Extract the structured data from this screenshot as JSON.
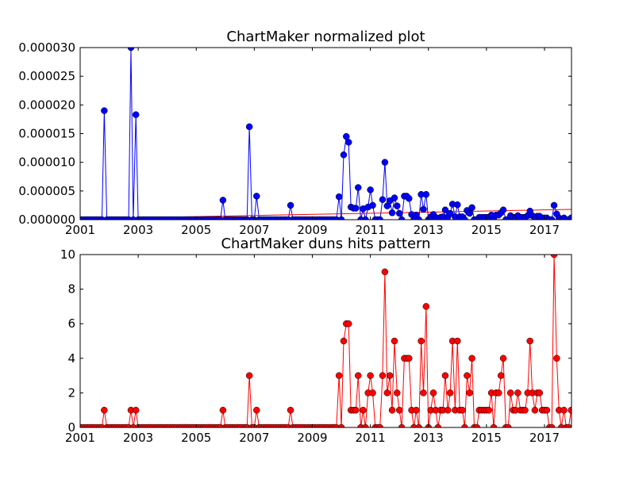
{
  "chart_data": [
    {
      "type": "line",
      "title": "ChartMaker normalized plot",
      "xlim": [
        2001,
        2017.93
      ],
      "xticks": [
        2001,
        2003,
        2005,
        2007,
        2009,
        2011,
        2013,
        2015,
        2017
      ],
      "ylim": [
        0,
        3e-05
      ],
      "yticks": [
        {
          "value": 0,
          "label": "0.000000"
        },
        {
          "value": 5e-06,
          "label": "0.000005"
        },
        {
          "value": 1e-05,
          "label": "0.000010"
        },
        {
          "value": 1.5e-05,
          "label": "0.000015"
        },
        {
          "value": 2e-05,
          "label": "0.000020"
        },
        {
          "value": 2.5e-05,
          "label": "0.000025"
        },
        {
          "value": 3e-05,
          "label": "0.000030"
        }
      ],
      "color": "#0000ff",
      "x": [
        2001,
        2001.08,
        2001.17,
        2001.25,
        2001.33,
        2001.42,
        2001.5,
        2001.58,
        2001.67,
        2001.75,
        2001.83,
        2001.92,
        2002,
        2002.08,
        2002.17,
        2002.25,
        2002.33,
        2002.42,
        2002.5,
        2002.58,
        2002.67,
        2002.75,
        2002.83,
        2002.92,
        2003,
        2003.08,
        2003.17,
        2003.25,
        2003.33,
        2003.42,
        2003.5,
        2003.58,
        2003.67,
        2003.75,
        2003.83,
        2003.92,
        2004,
        2004.08,
        2004.17,
        2004.25,
        2004.33,
        2004.42,
        2004.5,
        2004.58,
        2004.67,
        2004.75,
        2004.83,
        2004.92,
        2005,
        2005.08,
        2005.17,
        2005.25,
        2005.33,
        2005.42,
        2005.5,
        2005.58,
        2005.67,
        2005.75,
        2005.83,
        2005.92,
        2006,
        2006.08,
        2006.17,
        2006.25,
        2006.33,
        2006.42,
        2006.5,
        2006.58,
        2006.67,
        2006.75,
        2006.83,
        2006.92,
        2007,
        2007.08,
        2007.17,
        2007.25,
        2007.33,
        2007.42,
        2007.5,
        2007.58,
        2007.67,
        2007.75,
        2007.83,
        2007.92,
        2008,
        2008.08,
        2008.17,
        2008.25,
        2008.33,
        2008.42,
        2008.5,
        2008.58,
        2008.67,
        2008.75,
        2008.83,
        2008.92,
        2009,
        2009.08,
        2009.17,
        2009.25,
        2009.33,
        2009.42,
        2009.5,
        2009.58,
        2009.67,
        2009.75,
        2009.83,
        2009.92,
        2010,
        2010.08,
        2010.17,
        2010.25,
        2010.33,
        2010.42,
        2010.5,
        2010.58,
        2010.67,
        2010.75,
        2010.83,
        2010.92,
        2011,
        2011.08,
        2011.17,
        2011.25,
        2011.33,
        2011.42,
        2011.5,
        2011.58,
        2011.67,
        2011.75,
        2011.83,
        2011.92,
        2012,
        2012.08,
        2012.17,
        2012.25,
        2012.33,
        2012.42,
        2012.5,
        2012.58,
        2012.67,
        2012.75,
        2012.83,
        2012.92,
        2013,
        2013.08,
        2013.17,
        2013.25,
        2013.33,
        2013.42,
        2013.5,
        2013.58,
        2013.67,
        2013.75,
        2013.83,
        2013.92,
        2014,
        2014.08,
        2014.17,
        2014.25,
        2014.33,
        2014.42,
        2014.5,
        2014.58,
        2014.67,
        2014.75,
        2014.83,
        2014.92,
        2015,
        2015.08,
        2015.17,
        2015.25,
        2015.33,
        2015.42,
        2015.5,
        2015.58,
        2015.67,
        2015.75,
        2015.83,
        2015.92,
        2016,
        2016.08,
        2016.17,
        2016.25,
        2016.33,
        2016.42,
        2016.5,
        2016.58,
        2016.67,
        2016.75,
        2016.83,
        2016.92,
        2017,
        2017.08,
        2017.17,
        2017.25,
        2017.33,
        2017.42,
        2017.5,
        2017.58,
        2017.67,
        2017.75,
        2017.83,
        2017.92
      ],
      "values": [
        0,
        0,
        0,
        0,
        0,
        0,
        0,
        0,
        0,
        0,
        1.9e-05,
        0,
        0,
        0,
        0,
        0,
        0,
        0,
        0,
        0,
        0,
        3e-05,
        0,
        1.83e-05,
        0,
        0,
        0,
        0,
        0,
        0,
        0,
        0,
        0,
        0,
        0,
        0,
        0,
        0,
        0,
        0,
        0,
        0,
        0,
        0,
        0,
        0,
        0,
        0,
        0,
        0,
        0,
        0,
        0,
        0,
        0,
        0,
        0,
        0,
        0,
        3.4e-06,
        0,
        0,
        0,
        0,
        0,
        0,
        0,
        0,
        0,
        0,
        1.62e-05,
        0,
        0,
        4.1e-06,
        0,
        0,
        0,
        0,
        0,
        0,
        0,
        0,
        0,
        0,
        0,
        0,
        0,
        2.5e-06,
        0,
        0,
        0,
        0,
        0,
        0,
        0,
        0,
        0,
        0,
        0,
        0,
        0,
        0,
        0,
        0,
        0,
        0,
        0,
        4e-06,
        0,
        1.13e-05,
        1.45e-05,
        1.35e-05,
        2.2e-06,
        2e-06,
        2e-06,
        5.6e-06,
        0,
        1.9e-06,
        0,
        2.2e-06,
        5.2e-06,
        2.5e-06,
        0,
        0,
        0,
        3.5e-06,
        1e-05,
        2.4e-06,
        3.3e-06,
        1.2e-06,
        3.8e-06,
        2.4e-06,
        1.1e-06,
        0,
        4.1e-06,
        4.1e-06,
        3.7e-06,
        9e-07,
        0,
        8e-07,
        0,
        4.4e-06,
        1.8e-06,
        4.4e-06,
        0,
        5e-07,
        9e-07,
        4e-07,
        0,
        4e-07,
        5e-07,
        1.7e-06,
        5e-07,
        1.1e-06,
        2.7e-06,
        5e-07,
        2.6e-06,
        5e-07,
        5e-07,
        0,
        1.6e-06,
        1.1e-06,
        2.1e-06,
        0,
        0,
        4e-07,
        4e-07,
        4e-07,
        4e-07,
        4e-07,
        8e-07,
        0,
        8e-07,
        8e-07,
        1.2e-06,
        1.7e-06,
        0,
        0,
        7e-07,
        4e-07,
        4e-07,
        7e-07,
        4e-07,
        4e-07,
        4e-07,
        7e-07,
        1.5e-06,
        7e-07,
        3e-07,
        6e-07,
        6e-07,
        3e-07,
        3e-07,
        3e-07,
        0,
        0,
        2.5e-06,
        1e-06,
        3e-07,
        0,
        3e-07,
        0,
        0,
        3e-07
      ],
      "trend": {
        "x": [
          2001,
          2017.93
        ],
        "values": [
          1.4e-07,
          1.8e-06
        ],
        "color": "#ff0000"
      }
    },
    {
      "type": "line",
      "title": "ChartMaker duns hits pattern",
      "xlim": [
        2001,
        2017.93
      ],
      "xticks": [
        2001,
        2003,
        2005,
        2007,
        2009,
        2011,
        2013,
        2015,
        2017
      ],
      "ylim": [
        0,
        10
      ],
      "yticks": [
        0,
        2,
        4,
        6,
        8,
        10
      ],
      "color": "#ff0000",
      "x": [
        2001,
        2001.08,
        2001.17,
        2001.25,
        2001.33,
        2001.42,
        2001.5,
        2001.58,
        2001.67,
        2001.75,
        2001.83,
        2001.92,
        2002,
        2002.08,
        2002.17,
        2002.25,
        2002.33,
        2002.42,
        2002.5,
        2002.58,
        2002.67,
        2002.75,
        2002.83,
        2002.92,
        2003,
        2003.08,
        2003.17,
        2003.25,
        2003.33,
        2003.42,
        2003.5,
        2003.58,
        2003.67,
        2003.75,
        2003.83,
        2003.92,
        2004,
        2004.08,
        2004.17,
        2004.25,
        2004.33,
        2004.42,
        2004.5,
        2004.58,
        2004.67,
        2004.75,
        2004.83,
        2004.92,
        2005,
        2005.08,
        2005.17,
        2005.25,
        2005.33,
        2005.42,
        2005.5,
        2005.58,
        2005.67,
        2005.75,
        2005.83,
        2005.92,
        2006,
        2006.08,
        2006.17,
        2006.25,
        2006.33,
        2006.42,
        2006.5,
        2006.58,
        2006.67,
        2006.75,
        2006.83,
        2006.92,
        2007,
        2007.08,
        2007.17,
        2007.25,
        2007.33,
        2007.42,
        2007.5,
        2007.58,
        2007.67,
        2007.75,
        2007.83,
        2007.92,
        2008,
        2008.08,
        2008.17,
        2008.25,
        2008.33,
        2008.42,
        2008.5,
        2008.58,
        2008.67,
        2008.75,
        2008.83,
        2008.92,
        2009,
        2009.08,
        2009.17,
        2009.25,
        2009.33,
        2009.42,
        2009.5,
        2009.58,
        2009.67,
        2009.75,
        2009.83,
        2009.92,
        2010,
        2010.08,
        2010.17,
        2010.25,
        2010.33,
        2010.42,
        2010.5,
        2010.58,
        2010.67,
        2010.75,
        2010.83,
        2010.92,
        2011,
        2011.08,
        2011.17,
        2011.25,
        2011.33,
        2011.42,
        2011.5,
        2011.58,
        2011.67,
        2011.75,
        2011.83,
        2011.92,
        2012,
        2012.08,
        2012.17,
        2012.25,
        2012.33,
        2012.42,
        2012.5,
        2012.58,
        2012.67,
        2012.75,
        2012.83,
        2012.92,
        2013,
        2013.08,
        2013.17,
        2013.25,
        2013.33,
        2013.42,
        2013.5,
        2013.58,
        2013.67,
        2013.75,
        2013.83,
        2013.92,
        2014,
        2014.08,
        2014.17,
        2014.25,
        2014.33,
        2014.42,
        2014.5,
        2014.58,
        2014.67,
        2014.75,
        2014.83,
        2014.92,
        2015,
        2015.08,
        2015.17,
        2015.25,
        2015.33,
        2015.42,
        2015.5,
        2015.58,
        2015.67,
        2015.75,
        2015.83,
        2015.92,
        2016,
        2016.08,
        2016.17,
        2016.25,
        2016.33,
        2016.42,
        2016.5,
        2016.58,
        2016.67,
        2016.75,
        2016.83,
        2016.92,
        2017,
        2017.08,
        2017.17,
        2017.25,
        2017.33,
        2017.42,
        2017.5,
        2017.58,
        2017.67,
        2017.75,
        2017.83,
        2017.92
      ],
      "values": [
        0,
        0,
        0,
        0,
        0,
        0,
        0,
        0,
        0,
        0,
        1,
        0,
        0,
        0,
        0,
        0,
        0,
        0,
        0,
        0,
        0,
        1,
        0,
        1,
        0,
        0,
        0,
        0,
        0,
        0,
        0,
        0,
        0,
        0,
        0,
        0,
        0,
        0,
        0,
        0,
        0,
        0,
        0,
        0,
        0,
        0,
        0,
        0,
        0,
        0,
        0,
        0,
        0,
        0,
        0,
        0,
        0,
        0,
        0,
        1,
        0,
        0,
        0,
        0,
        0,
        0,
        0,
        0,
        0,
        0,
        3,
        0,
        0,
        1,
        0,
        0,
        0,
        0,
        0,
        0,
        0,
        0,
        0,
        0,
        0,
        0,
        0,
        1,
        0,
        0,
        0,
        0,
        0,
        0,
        0,
        0,
        0,
        0,
        0,
        0,
        0,
        0,
        0,
        0,
        0,
        0,
        0,
        3,
        0,
        5,
        6,
        6,
        1,
        1,
        1,
        3,
        0,
        1,
        0,
        2,
        3,
        2,
        0,
        0,
        0,
        3,
        9,
        2,
        3,
        1,
        5,
        2,
        1,
        0,
        4,
        4,
        4,
        1,
        0,
        1,
        0,
        5,
        2,
        7,
        0,
        1,
        2,
        1,
        0,
        1,
        1,
        3,
        1,
        2,
        5,
        1,
        5,
        1,
        1,
        0,
        3,
        2,
        4,
        0,
        0,
        1,
        1,
        1,
        1,
        1,
        2,
        0,
        2,
        2,
        3,
        4,
        0,
        0,
        2,
        1,
        1,
        2,
        1,
        1,
        1,
        2,
        5,
        2,
        1,
        2,
        2,
        1,
        1,
        1,
        0,
        0,
        10,
        4,
        1,
        0,
        1,
        0,
        0,
        1
      ]
    }
  ]
}
